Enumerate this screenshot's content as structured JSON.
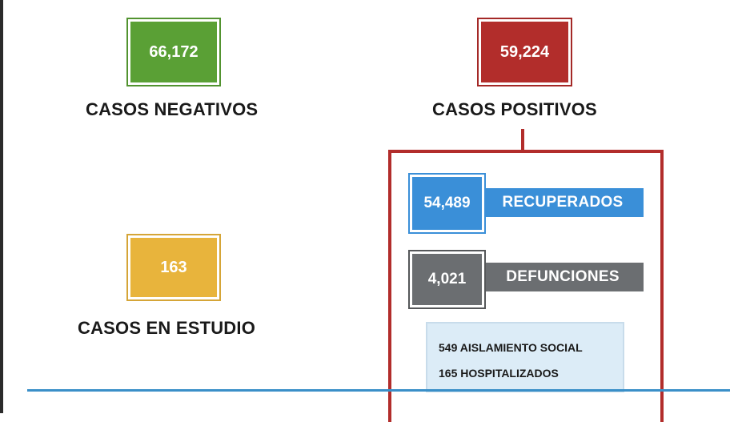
{
  "negativos": {
    "value": "66,172",
    "label": "CASOS NEGATIVOS"
  },
  "positivos": {
    "value": "59,224",
    "label": "CASOS POSITIVOS"
  },
  "estudio": {
    "value": "163",
    "label": "CASOS EN ESTUDIO"
  },
  "recuperados": {
    "value": "54,489",
    "label": "RECUPERADOS"
  },
  "defunciones": {
    "value": "4,021",
    "label": "DEFUNCIONES"
  },
  "detalle": [
    "549  AISLAMIENTO SOCIAL",
    "165  HOSPITALIZADOS"
  ],
  "colors": {
    "negativos": "#5aa035",
    "positivos": "#b22d2b",
    "estudio": "#e8b43c",
    "recuperados": "#3a8fd8",
    "defunciones": "#6b6e71",
    "detalle_bg": "#dcecf7"
  }
}
